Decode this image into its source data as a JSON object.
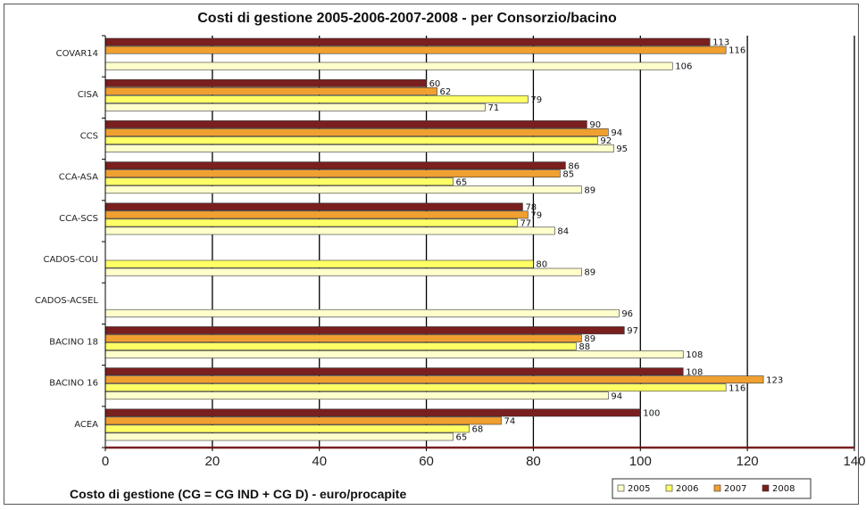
{
  "chart_data": {
    "type": "bar",
    "orientation": "horizontal",
    "title": "Costi di gestione 2005-2006-2007-2008 - per Consorzio/bacino",
    "xlabel": "Costo di gestione (CG = CG IND + CG D) - euro/procapite",
    "xlim": [
      0,
      140
    ],
    "xticks": [
      0,
      20,
      40,
      60,
      80,
      100,
      120,
      140
    ],
    "grid": "vertical",
    "legend_position": "bottom-right",
    "categories": [
      "COVAR14",
      "CISA",
      "CCS",
      "CCA-ASA",
      "CCA-SCS",
      "CADOS-COU",
      "CADOS-ACSEL",
      "BACINO 18",
      "BACINO 16",
      "ACEA"
    ],
    "series": [
      {
        "name": "2005",
        "color": "#FFFFCC",
        "values": [
          106,
          71,
          95,
          89,
          84,
          89,
          96,
          108,
          94,
          65
        ]
      },
      {
        "name": "2006",
        "color": "#FFFF66",
        "values": [
          null,
          79,
          92,
          65,
          77,
          80,
          null,
          88,
          116,
          68
        ]
      },
      {
        "name": "2007",
        "color": "#F0A030",
        "values": [
          116,
          62,
          94,
          85,
          79,
          null,
          null,
          89,
          123,
          74
        ]
      },
      {
        "name": "2008",
        "color": "#7A1F1F",
        "values": [
          113,
          60,
          90,
          86,
          78,
          null,
          null,
          97,
          108,
          100
        ]
      }
    ]
  }
}
